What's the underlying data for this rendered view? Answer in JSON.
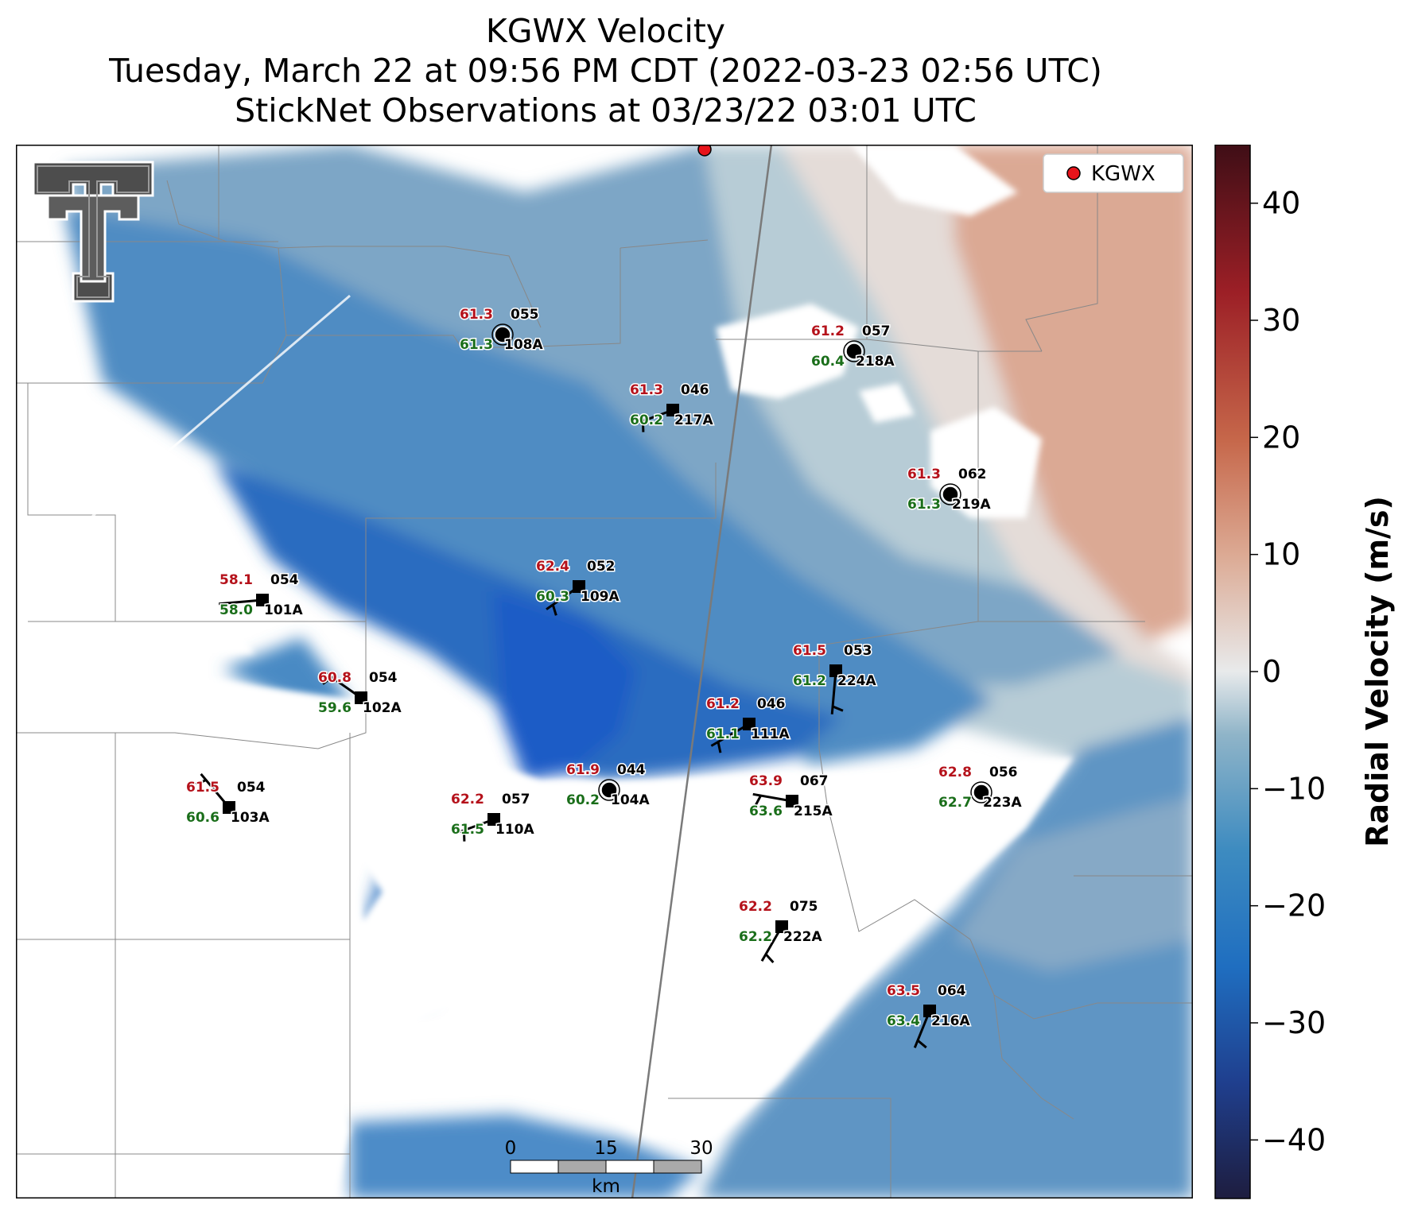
{
  "title": {
    "line1": "KGWX Velocity",
    "line2": "Tuesday, March 22 at 09:56 PM CDT (2022-03-23 02:56 UTC)",
    "line3": "StickNet Observations at 03/23/22 03:01 UTC"
  },
  "legend": {
    "label": "KGWX",
    "marker_color": "#e8141b"
  },
  "colorbar": {
    "label": "Radial Velocity (m/s)",
    "range": [
      -45,
      45
    ],
    "ticks": [
      "40",
      "30",
      "20",
      "10",
      "0",
      "−10",
      "−20",
      "−30",
      "−40"
    ],
    "colors": [
      "#1e1d3f",
      "#1f3f8e",
      "#1f6ec0",
      "#3d8bc0",
      "#8fb4c8",
      "#e8eaeb",
      "#dcaa94",
      "#c6674a",
      "#9c1f26",
      "#3f0e16"
    ]
  },
  "scalebar": {
    "ticks": [
      "0",
      "15",
      "30"
    ],
    "unit": "km"
  },
  "logo": {
    "name": "Texas Tech Double T",
    "colors": [
      "#4d4d4d",
      "#ffffff"
    ]
  },
  "stations": [
    {
      "id": "108A",
      "temp": "61.3",
      "dew": "61.3",
      "dir": "055",
      "marker": "circle"
    },
    {
      "id": "218A",
      "temp": "61.2",
      "dew": "60.4",
      "dir": "057",
      "marker": "circle"
    },
    {
      "id": "217A",
      "temp": "61.3",
      "dew": "60.2",
      "dir": "046",
      "marker": "square"
    },
    {
      "id": "219A",
      "temp": "61.3",
      "dew": "61.3",
      "dir": "062",
      "marker": "circle"
    },
    {
      "id": "101A",
      "temp": "58.1",
      "dew": "58.0",
      "dir": "054",
      "marker": "square"
    },
    {
      "id": "109A",
      "temp": "62.4",
      "dew": "60.3",
      "dir": "052",
      "marker": "square"
    },
    {
      "id": "224A",
      "temp": "61.5",
      "dew": "61.2",
      "dir": "053",
      "marker": "square"
    },
    {
      "id": "102A",
      "temp": "60.8",
      "dew": "59.6",
      "dir": "054",
      "marker": "square"
    },
    {
      "id": "111A",
      "temp": "61.2",
      "dew": "61.1",
      "dir": "046",
      "marker": "square"
    },
    {
      "id": "104A",
      "temp": "61.9",
      "dew": "60.2",
      "dir": "044",
      "marker": "circle"
    },
    {
      "id": "223A",
      "temp": "62.8",
      "dew": "62.7",
      "dir": "056",
      "marker": "circle"
    },
    {
      "id": "103A",
      "temp": "61.5",
      "dew": "60.6",
      "dir": "054",
      "marker": "square"
    },
    {
      "id": "110A",
      "temp": "62.2",
      "dew": "61.5",
      "dir": "057",
      "marker": "square"
    },
    {
      "id": "215A",
      "temp": "63.9",
      "dew": "63.6",
      "dir": "067",
      "marker": "square"
    },
    {
      "id": "222A",
      "temp": "62.2",
      "dew": "62.2",
      "dir": "075",
      "marker": "square"
    },
    {
      "id": "216A",
      "temp": "63.5",
      "dew": "63.4",
      "dir": "064",
      "marker": "square"
    }
  ]
}
